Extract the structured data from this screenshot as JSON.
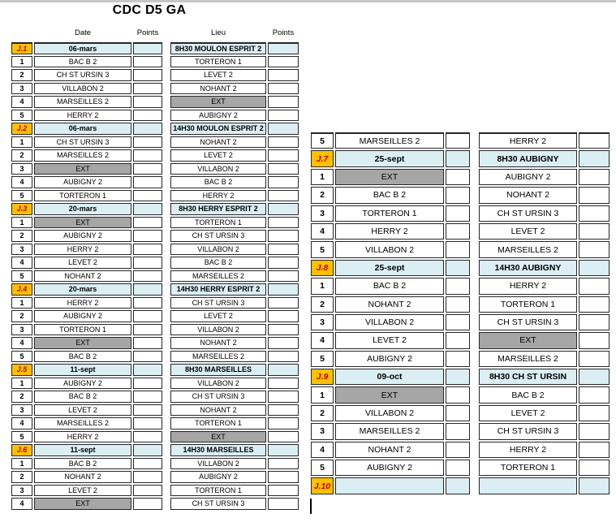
{
  "title": "CDC D5 GA",
  "column_headers": [
    "Date",
    "Points",
    "Lieu",
    "Points"
  ],
  "colors": {
    "journee_label_bg": "#FFC000",
    "journee_label_text": "#C00000",
    "journee_row_bg": "#DAEEF3",
    "ext_cell_bg": "#A6A6A6",
    "border": "#262626"
  },
  "tables": {
    "left": {
      "rows": [
        {
          "label": "J.1",
          "left": "06-mars",
          "right": "8H30  MOULON ESPRIT 2",
          "kind": "j"
        },
        {
          "label": "1",
          "left": "BAC B 2",
          "right": "TORTERON 1",
          "kind": "m"
        },
        {
          "label": "2",
          "left": "CH ST URSIN 3",
          "right": "LEVET 2",
          "kind": "m"
        },
        {
          "label": "3",
          "left": "VILLABON 2",
          "right": "NOHANT 2",
          "kind": "m"
        },
        {
          "label": "4",
          "left": "MARSEILLES 2",
          "right": "EXT",
          "kind": "m"
        },
        {
          "label": "5",
          "left": "HERRY 2",
          "right": "AUBIGNY 2",
          "kind": "m"
        },
        {
          "label": "J.2",
          "left": "06-mars",
          "right": "14H30 MOULON ESPRIT 2",
          "kind": "j"
        },
        {
          "label": "1",
          "left": "CH ST URSIN 3",
          "right": "NOHANT 2",
          "kind": "m"
        },
        {
          "label": "2",
          "left": "MARSEILLES 2",
          "right": "LEVET 2",
          "kind": "m"
        },
        {
          "label": "3",
          "left": "EXT",
          "right": "VILLABON 2",
          "kind": "m"
        },
        {
          "label": "4",
          "left": "AUBIGNY 2",
          "right": "BAC B 2",
          "kind": "m"
        },
        {
          "label": "5",
          "left": "TORTERON 1",
          "right": "HERRY 2",
          "kind": "m"
        },
        {
          "label": "J.3",
          "left": "20-mars",
          "right": "8H30 HERRY ESPRIT 2",
          "kind": "j"
        },
        {
          "label": "1",
          "left": "EXT",
          "right": "TORTERON 1",
          "kind": "m"
        },
        {
          "label": "2",
          "left": "AUBIGNY 2",
          "right": "CH ST URSIN 3",
          "kind": "m"
        },
        {
          "label": "3",
          "left": "HERRY 2",
          "right": "VILLABON 2",
          "kind": "m"
        },
        {
          "label": "4",
          "left": "LEVET 2",
          "right": "BAC B 2",
          "kind": "m"
        },
        {
          "label": "5",
          "left": "NOHANT 2",
          "right": "MARSEILLES 2",
          "kind": "m"
        },
        {
          "label": "J.4",
          "left": "20-mars",
          "right": "14H30 HERRY ESPRIT 2",
          "kind": "j"
        },
        {
          "label": "1",
          "left": "HERRY 2",
          "right": "CH ST URSIN 3",
          "kind": "m"
        },
        {
          "label": "2",
          "left": "AUBIGNY 2",
          "right": "LEVET 2",
          "kind": "m"
        },
        {
          "label": "3",
          "left": "TORTERON 1",
          "right": "VILLABON 2",
          "kind": "m"
        },
        {
          "label": "4",
          "left": "EXT",
          "right": "NOHANT 2",
          "kind": "m"
        },
        {
          "label": "5",
          "left": "BAC B 2",
          "right": "MARSEILLES 2",
          "kind": "m"
        },
        {
          "label": "J.5",
          "left": "11-sept",
          "right": "8H30 MARSEILLES",
          "kind": "j"
        },
        {
          "label": "1",
          "left": "AUBIGNY 2",
          "right": "VILLABON 2",
          "kind": "m"
        },
        {
          "label": "2",
          "left": "BAC B 2",
          "right": "CH ST URSIN 3",
          "kind": "m"
        },
        {
          "label": "3",
          "left": "LEVET 2",
          "right": "NOHANT 2",
          "kind": "m"
        },
        {
          "label": "4",
          "left": "MARSEILLES 2",
          "right": "TORTERON 1",
          "kind": "m"
        },
        {
          "label": "5",
          "left": "HERRY 2",
          "right": "EXT",
          "kind": "m"
        },
        {
          "label": "J.6",
          "left": "11-sept",
          "right": "14H30 MARSEILLES",
          "kind": "j"
        },
        {
          "label": "1",
          "left": "BAC B 2",
          "right": "VILLABON 2",
          "kind": "m"
        },
        {
          "label": "2",
          "left": "NOHANT 2",
          "right": "AUBIGNY 2",
          "kind": "m"
        },
        {
          "label": "3",
          "left": "LEVET 2",
          "right": "TORTERON 1",
          "kind": "m"
        },
        {
          "label": "4",
          "left": "EXT",
          "right": "CH ST URSIN 3",
          "kind": "m"
        }
      ]
    },
    "right": {
      "rows": [
        {
          "label": "5",
          "left": "MARSEILLES 2",
          "right": "HERRY 2",
          "kind": "m"
        },
        {
          "label": "J.7",
          "left": "25-sept",
          "right": "8H30 AUBIGNY",
          "kind": "j"
        },
        {
          "label": "1",
          "left": "EXT",
          "right": "AUBIGNY 2",
          "kind": "m"
        },
        {
          "label": "2",
          "left": "BAC B 2",
          "right": "NOHANT 2",
          "kind": "m"
        },
        {
          "label": "3",
          "left": "TORTERON 1",
          "right": "CH ST URSIN 3",
          "kind": "m"
        },
        {
          "label": "4",
          "left": "HERRY 2",
          "right": "LEVET 2",
          "kind": "m"
        },
        {
          "label": "5",
          "left": "VILLABON 2",
          "right": "MARSEILLES 2",
          "kind": "m"
        },
        {
          "label": "J.8",
          "left": "25-sept",
          "right": "14H30 AUBIGNY",
          "kind": "j"
        },
        {
          "label": "1",
          "left": "BAC B 2",
          "right": "HERRY 2",
          "kind": "m"
        },
        {
          "label": "2",
          "left": "NOHANT 2",
          "right": "TORTERON 1",
          "kind": "m"
        },
        {
          "label": "3",
          "left": "VILLABON 2",
          "right": "CH ST URSIN 3",
          "kind": "m"
        },
        {
          "label": "4",
          "left": "LEVET 2",
          "right": "EXT",
          "kind": "m"
        },
        {
          "label": "5",
          "left": "AUBIGNY 2",
          "right": "MARSEILLES 2",
          "kind": "m"
        },
        {
          "label": "J.9",
          "left": "09-oct",
          "right": "8H30 CH ST URSIN",
          "kind": "j"
        },
        {
          "label": "1",
          "left": "EXT",
          "right": "BAC B 2",
          "kind": "m"
        },
        {
          "label": "2",
          "left": "VILLABON 2",
          "right": "LEVET 2",
          "kind": "m"
        },
        {
          "label": "3",
          "left": "MARSEILLES 2",
          "right": "CH ST URSIN 3",
          "kind": "m"
        },
        {
          "label": "4",
          "left": "NOHANT 2",
          "right": "HERRY 2",
          "kind": "m"
        },
        {
          "label": "5",
          "left": "AUBIGNY 2",
          "right": "TORTERON 1",
          "kind": "m"
        },
        {
          "label": "J.10",
          "left": "",
          "right": "",
          "kind": "j"
        }
      ]
    }
  }
}
